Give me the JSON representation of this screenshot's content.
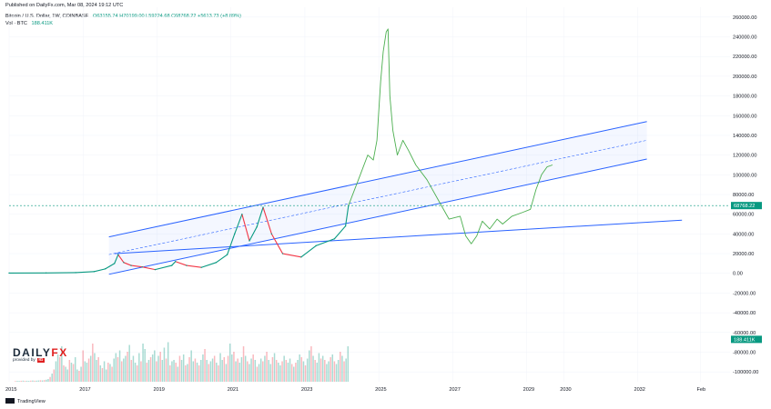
{
  "header": {
    "published": "Published on DailyFx.com, Mar 08, 2024 19:12 UTC",
    "symbol": "Bitcoin / U.S. Dollar, 1W, COINBASE",
    "ohlc": "O63155.74 H70199.00 L59224.68 C68768.22 +5613.73 (+8.89%)",
    "volume_label": "Vol · BTC",
    "volume_value": "188.411K"
  },
  "branding": {
    "logo_daily": "DAILY",
    "logo_fx": "FX",
    "logo_provided": "provided by",
    "logo_ig": "IG",
    "tradingview": "TradingView"
  },
  "colors": {
    "up": "#089981",
    "down": "#f23645",
    "channel": "#2962ff",
    "projection": "#4caf50",
    "price_line": "#089981"
  },
  "chart_data": {
    "type": "line",
    "y_axis": {
      "ticks": [
        "260000.00",
        "240000.00",
        "220000.00",
        "200000.00",
        "180000.00",
        "160000.00",
        "140000.00",
        "120000.00",
        "100000.00",
        "80000.00",
        "60000.00",
        "40000.00",
        "20000.00",
        "0.00",
        "-20000.00",
        "-40000.00",
        "-60000.00",
        "-80000.00",
        "-100000.00"
      ],
      "range": [
        -110000,
        270000
      ]
    },
    "x_axis": {
      "ticks": [
        "2015",
        "2017",
        "2019",
        "2021",
        "2023",
        "2025",
        "2027",
        "2029",
        "2030",
        "2032",
        "Feb"
      ],
      "range": [
        2015.0,
        2034.5
      ]
    },
    "current_price": {
      "label": "68768.22",
      "value": 68768.22
    },
    "volume_badge": "188.411K",
    "series": [
      {
        "role": "price",
        "values": [
          [
            2015.0,
            300
          ],
          [
            2016.0,
            420
          ],
          [
            2016.8,
            700
          ],
          [
            2017.3,
            1800
          ],
          [
            2017.6,
            4500
          ],
          [
            2017.85,
            10000
          ],
          [
            2017.95,
            19000
          ],
          [
            2018.1,
            11000
          ],
          [
            2018.3,
            8000
          ],
          [
            2018.6,
            6500
          ],
          [
            2018.95,
            3800
          ],
          [
            2019.4,
            8000
          ],
          [
            2019.5,
            12000
          ],
          [
            2019.8,
            8000
          ],
          [
            2020.2,
            6000
          ],
          [
            2020.6,
            11000
          ],
          [
            2020.9,
            19000
          ],
          [
            2021.1,
            40000
          ],
          [
            2021.3,
            60000
          ],
          [
            2021.5,
            33000
          ],
          [
            2021.7,
            47000
          ],
          [
            2021.87,
            67000
          ],
          [
            2022.1,
            40000
          ],
          [
            2022.4,
            20000
          ],
          [
            2022.9,
            16500
          ],
          [
            2023.3,
            28000
          ],
          [
            2023.8,
            35000
          ],
          [
            2024.1,
            48000
          ],
          [
            2024.18,
            68768
          ]
        ]
      },
      {
        "role": "projection",
        "values": [
          [
            2024.18,
            68768
          ],
          [
            2024.5,
            100000
          ],
          [
            2024.7,
            120000
          ],
          [
            2024.85,
            115000
          ],
          [
            2024.95,
            135000
          ],
          [
            2025.05,
            195000
          ],
          [
            2025.12,
            225000
          ],
          [
            2025.2,
            245000
          ],
          [
            2025.25,
            248000
          ],
          [
            2025.3,
            180000
          ],
          [
            2025.38,
            145000
          ],
          [
            2025.5,
            120000
          ],
          [
            2025.65,
            135000
          ],
          [
            2025.8,
            125000
          ],
          [
            2026.0,
            110000
          ],
          [
            2026.3,
            95000
          ],
          [
            2026.6,
            75000
          ],
          [
            2026.9,
            55000
          ],
          [
            2027.2,
            58000
          ],
          [
            2027.35,
            38000
          ],
          [
            2027.5,
            30000
          ],
          [
            2027.65,
            38000
          ],
          [
            2027.8,
            53000
          ],
          [
            2028.0,
            45000
          ],
          [
            2028.2,
            55000
          ],
          [
            2028.35,
            50000
          ],
          [
            2028.6,
            58000
          ],
          [
            2028.9,
            62000
          ],
          [
            2029.1,
            65000
          ],
          [
            2029.25,
            85000
          ],
          [
            2029.4,
            100000
          ],
          [
            2029.55,
            108000
          ],
          [
            2029.7,
            110000
          ]
        ]
      }
    ],
    "lines": [
      {
        "role": "channel-upper",
        "from": [
          2017.7,
          37000
        ],
        "to": [
          2032.25,
          154000
        ]
      },
      {
        "role": "channel-mid",
        "from": [
          2017.7,
          19000
        ],
        "to": [
          2032.25,
          135000
        ]
      },
      {
        "role": "channel-lower",
        "from": [
          2017.7,
          -1000
        ],
        "to": [
          2032.25,
          116000
        ]
      },
      {
        "role": "support",
        "from": [
          2017.85,
          20000
        ],
        "to": [
          2033.2,
          54000
        ]
      }
    ],
    "volume": {
      "range": [
        2015.15,
        2024.2
      ],
      "ylim": [
        0,
        500000
      ],
      "values": [
        5000,
        6000,
        5500,
        7000,
        8000,
        6500,
        7000,
        6000,
        8000,
        9000,
        7500,
        8000,
        9500,
        11000,
        10000,
        12000,
        15000,
        20000,
        35000,
        60000,
        90000,
        150000,
        200000,
        180000,
        260000,
        120000,
        110000,
        90000,
        160000,
        140000,
        130000,
        180000,
        90000,
        80000,
        110000,
        230000,
        150000,
        140000,
        170000,
        190000,
        280000,
        210000,
        160000,
        180000,
        120000,
        100000,
        150000,
        90000,
        140000,
        130000,
        110000,
        170000,
        210000,
        180000,
        230000,
        150000,
        170000,
        190000,
        220000,
        270000,
        160000,
        190000,
        140000,
        120000,
        210000,
        150000,
        280000,
        240000,
        140000,
        160000,
        180000,
        200000,
        230000,
        150000,
        190000,
        220000,
        160000,
        250000,
        170000,
        290000,
        120000,
        150000,
        160000,
        140000,
        110000,
        190000,
        160000,
        200000,
        120000,
        130000,
        180000,
        230000,
        150000,
        170000,
        140000,
        120000,
        160000,
        200000,
        240000,
        160000,
        130000,
        150000,
        170000,
        190000,
        140000,
        120000,
        210000,
        160000,
        180000,
        130000,
        190000,
        280000,
        200000,
        220000,
        150000,
        170000,
        140000,
        180000,
        260000,
        190000,
        150000,
        130000,
        170000,
        200000,
        160000,
        110000,
        130000,
        170000,
        150000,
        190000,
        220000,
        160000,
        130000,
        180000,
        210000,
        160000,
        140000,
        120000,
        150000,
        190000,
        160000,
        140000,
        170000,
        130000,
        110000,
        140000,
        160000,
        200000,
        180000,
        150000,
        120000,
        170000,
        230000,
        260000,
        190000,
        160000,
        140000,
        210000,
        170000,
        190000,
        160000,
        130000,
        150000,
        180000,
        200000,
        150000,
        130000,
        160000,
        220000,
        190000,
        150000,
        170000,
        260000
      ]
    }
  }
}
